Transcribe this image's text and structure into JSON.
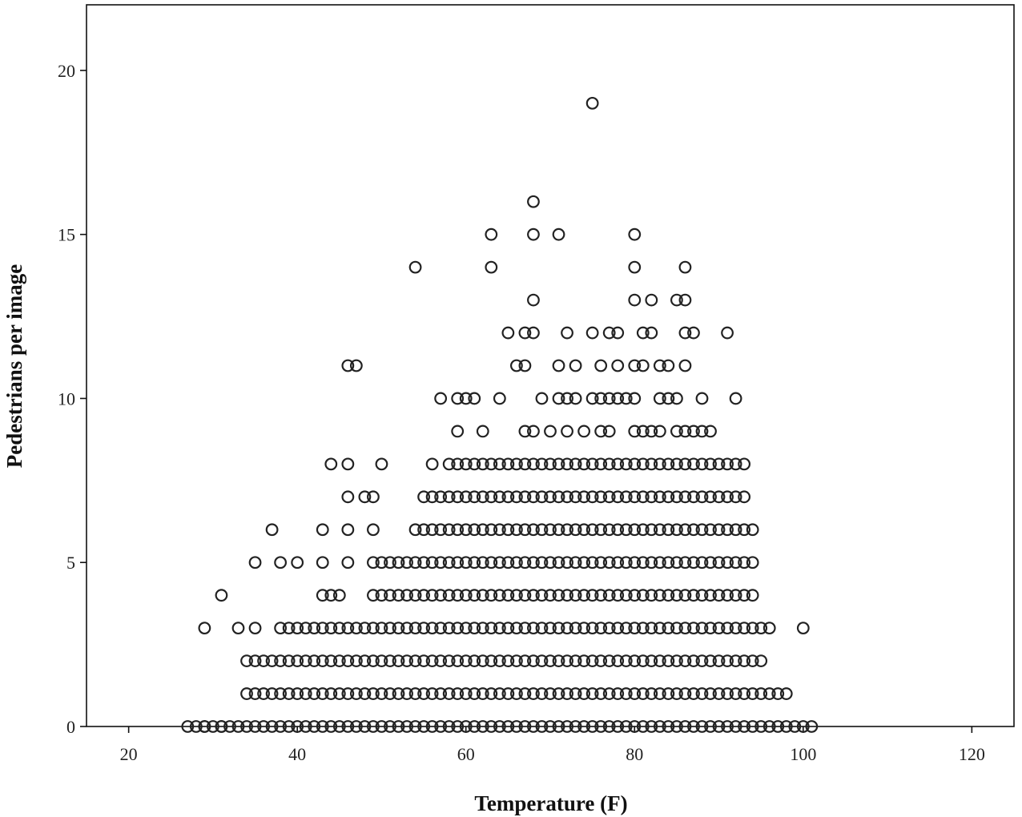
{
  "chart_data": {
    "type": "scatter",
    "xlabel": "Temperature (F)",
    "ylabel": "Pedestrians per image",
    "xlim": [
      15,
      125
    ],
    "ylim": [
      0,
      22
    ],
    "x_ticks": [
      20,
      40,
      60,
      80,
      100,
      120
    ],
    "y_ticks": [
      0,
      5,
      10,
      15,
      20
    ],
    "grid": false,
    "legend": "none",
    "marker": "open-circle",
    "rows": [
      {
        "y": 0,
        "x_range": [
          27,
          101
        ],
        "x_extra": [
          29,
          31
        ]
      },
      {
        "y": 1,
        "x_range": [
          34,
          98
        ]
      },
      {
        "y": 2,
        "x_range": [
          34,
          95
        ]
      },
      {
        "y": 3,
        "x_range": [
          38,
          96
        ],
        "x_extra": [
          29,
          33,
          35,
          100
        ]
      },
      {
        "y": 4,
        "x_range": [
          49,
          94
        ],
        "x_extra": [
          31,
          43,
          44,
          45
        ]
      },
      {
        "y": 5,
        "x_range": [
          50,
          94
        ],
        "x_extra": [
          35,
          38,
          40,
          43,
          46,
          49
        ]
      },
      {
        "y": 6,
        "x_range": [
          54,
          94
        ],
        "x_extra": [
          37,
          43,
          46,
          49
        ]
      },
      {
        "y": 7,
        "x_range": [
          55,
          93
        ],
        "x_extra": [
          46,
          48,
          49
        ]
      },
      {
        "y": 8,
        "x_range": [
          59,
          93
        ],
        "x_extra": [
          44,
          46,
          50,
          56,
          58
        ]
      }
    ],
    "points": [
      [
        57,
        10
      ],
      [
        59,
        10
      ],
      [
        60,
        10
      ],
      [
        61,
        10
      ],
      [
        64,
        10
      ],
      [
        69,
        10
      ],
      [
        71,
        10
      ],
      [
        72,
        10
      ],
      [
        73,
        10
      ],
      [
        75,
        10
      ],
      [
        76,
        10
      ],
      [
        77,
        10
      ],
      [
        78,
        10
      ],
      [
        79,
        10
      ],
      [
        80,
        10
      ],
      [
        83,
        10
      ],
      [
        84,
        10
      ],
      [
        85,
        10
      ],
      [
        88,
        10
      ],
      [
        92,
        10
      ],
      [
        59,
        9
      ],
      [
        62,
        9
      ],
      [
        67,
        9
      ],
      [
        68,
        9
      ],
      [
        70,
        9
      ],
      [
        72,
        9
      ],
      [
        74,
        9
      ],
      [
        76,
        9
      ],
      [
        77,
        9
      ],
      [
        80,
        9
      ],
      [
        81,
        9
      ],
      [
        82,
        9
      ],
      [
        83,
        9
      ],
      [
        85,
        9
      ],
      [
        86,
        9
      ],
      [
        87,
        9
      ],
      [
        88,
        9
      ],
      [
        89,
        9
      ],
      [
        46,
        11
      ],
      [
        47,
        11
      ],
      [
        66,
        11
      ],
      [
        67,
        11
      ],
      [
        71,
        11
      ],
      [
        73,
        11
      ],
      [
        76,
        11
      ],
      [
        78,
        11
      ],
      [
        80,
        11
      ],
      [
        81,
        11
      ],
      [
        83,
        11
      ],
      [
        84,
        11
      ],
      [
        86,
        11
      ],
      [
        65,
        12
      ],
      [
        67,
        12
      ],
      [
        68,
        12
      ],
      [
        72,
        12
      ],
      [
        75,
        12
      ],
      [
        77,
        12
      ],
      [
        78,
        12
      ],
      [
        81,
        12
      ],
      [
        82,
        12
      ],
      [
        86,
        12
      ],
      [
        87,
        12
      ],
      [
        91,
        12
      ],
      [
        68,
        13
      ],
      [
        80,
        13
      ],
      [
        82,
        13
      ],
      [
        85,
        13
      ],
      [
        86,
        13
      ],
      [
        54,
        14
      ],
      [
        63,
        14
      ],
      [
        80,
        14
      ],
      [
        86,
        14
      ],
      [
        63,
        15
      ],
      [
        68,
        15
      ],
      [
        71,
        15
      ],
      [
        80,
        15
      ],
      [
        68,
        16
      ],
      [
        75,
        19
      ]
    ]
  }
}
